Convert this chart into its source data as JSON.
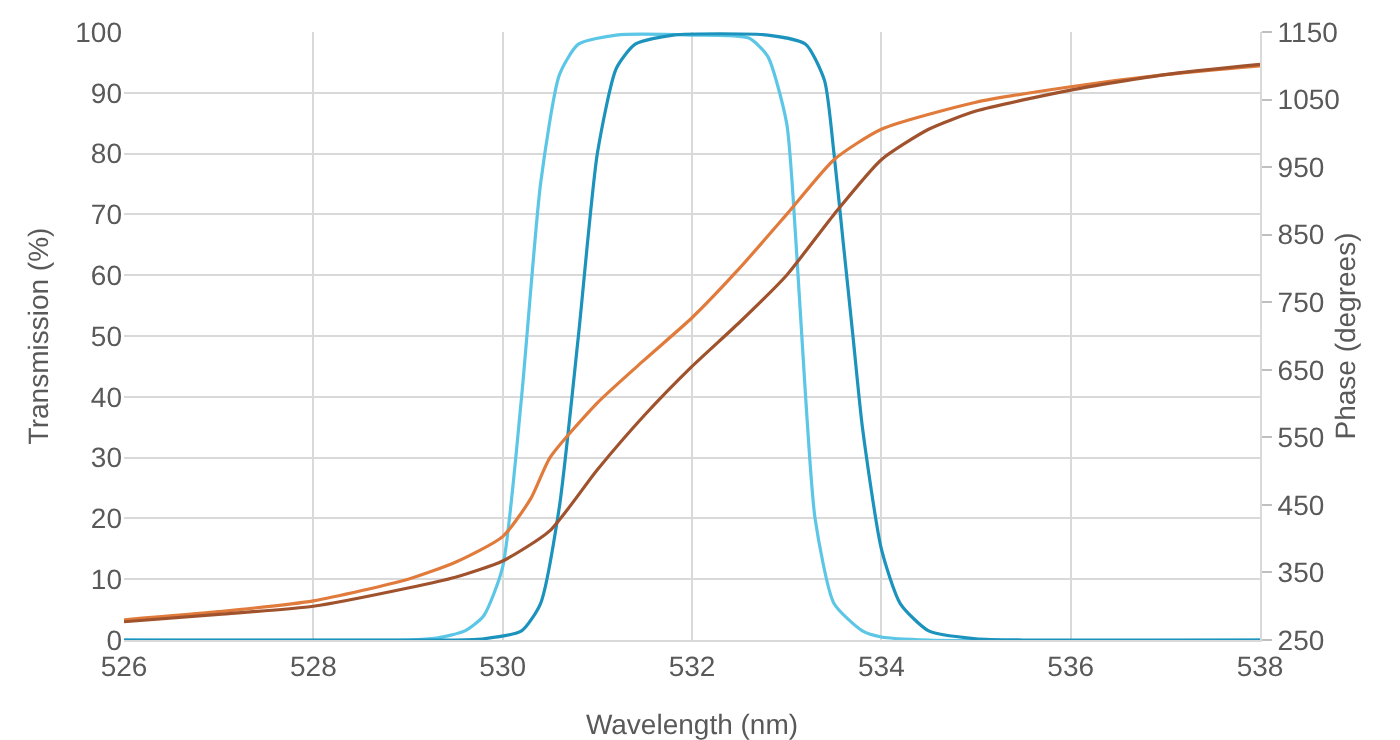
{
  "chart_data": {
    "type": "line",
    "xlabel": "Wavelength (nm)",
    "ylabel": "Transmission (%)",
    "y2label": "Phase (degrees)",
    "xlim": [
      526,
      538
    ],
    "xticks": [
      526,
      528,
      530,
      532,
      534,
      536,
      538
    ],
    "ylim": [
      0,
      100
    ],
    "yticks": [
      0,
      10,
      20,
      30,
      40,
      50,
      60,
      70,
      80,
      90,
      100
    ],
    "y2lim": [
      250,
      1150
    ],
    "y2ticks": [
      250,
      350,
      450,
      550,
      650,
      750,
      850,
      950,
      1050,
      1150
    ],
    "grid": true,
    "legend": false,
    "line_style": "solid",
    "series": [
      {
        "color": "#5cc6e6",
        "x": [
          526,
          529,
          529.3,
          529.6,
          529.8,
          530,
          530.2,
          530.4,
          530.6,
          530.8,
          531.2,
          532,
          532.6,
          532.8,
          533,
          533.1,
          533.2,
          533.3,
          533.5,
          533.8,
          534,
          534.5,
          538
        ],
        "values": [
          0,
          0,
          0.3,
          1.5,
          4,
          12,
          40,
          75,
          93,
          98,
          99.5,
          99.5,
          99,
          96,
          85,
          65,
          40,
          20,
          6,
          1.5,
          0.5,
          0,
          0
        ]
      },
      {
        "color": "#1b93bd",
        "x": [
          526,
          529.5,
          529.8,
          530.2,
          530.4,
          530.6,
          530.8,
          531,
          531.2,
          531.4,
          531.8,
          532.8,
          533.2,
          533.4,
          533.5,
          533.6,
          533.7,
          533.8,
          534,
          534.2,
          534.5,
          535,
          535.5,
          538
        ],
        "values": [
          0,
          0,
          0.2,
          1.5,
          6,
          22,
          50,
          80,
          94,
          98,
          99.5,
          99.5,
          98,
          92,
          80,
          65,
          50,
          35,
          15,
          6,
          1.5,
          0.2,
          0,
          0
        ]
      },
      {
        "color": "#e07b3c",
        "axis": "y2",
        "x": [
          526,
          527,
          528,
          529,
          529.5,
          530,
          530.3,
          530.5,
          531,
          531.5,
          532,
          532.5,
          533,
          533.5,
          534,
          535,
          536,
          537,
          538
        ],
        "values": [
          280,
          292,
          308,
          340,
          365,
          403,
          460,
          520,
          601,
          665,
          727,
          800,
          880,
          961,
          1006,
          1046,
          1069,
          1087,
          1100
        ]
      },
      {
        "color": "#a0522d",
        "axis": "y2",
        "x": [
          526,
          527,
          528,
          529,
          529.5,
          530,
          530.5,
          531,
          531.5,
          532,
          532.5,
          533,
          533.5,
          534,
          534.5,
          535,
          536,
          537,
          538
        ],
        "values": [
          277,
          288,
          300,
          327,
          343,
          367,
          412,
          502,
          583,
          655,
          720,
          790,
          880,
          961,
          1006,
          1033,
          1064,
          1087,
          1102
        ]
      }
    ]
  }
}
